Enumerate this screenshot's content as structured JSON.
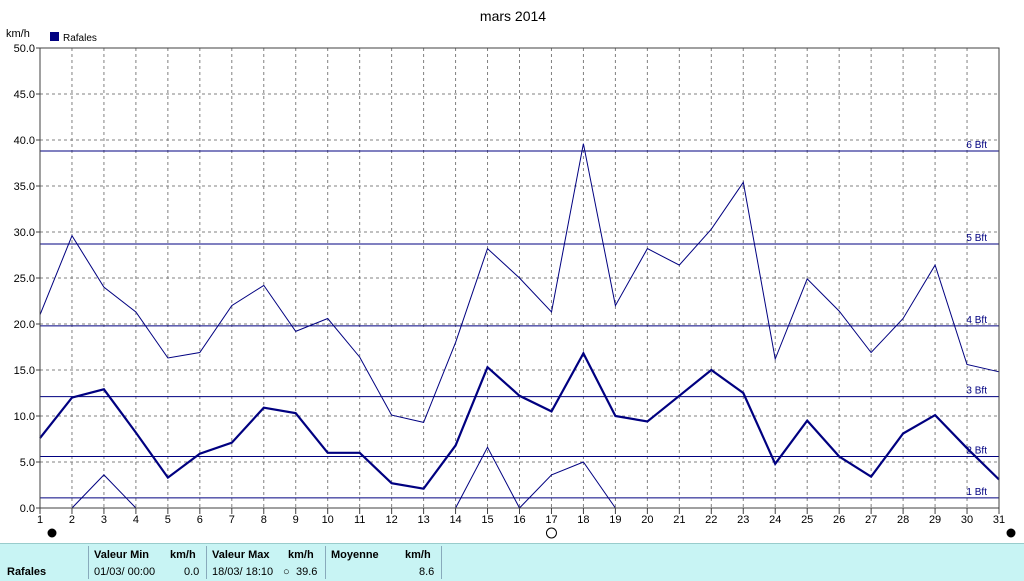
{
  "chart_data": {
    "type": "line",
    "title": "mars 2014",
    "ylabel": "km/h",
    "ylim": [
      0,
      50
    ],
    "yticks": [
      "0.0",
      "5.0",
      "10.0",
      "15.0",
      "20.0",
      "25.0",
      "30.0",
      "35.0",
      "40.0",
      "45.0",
      "50.0"
    ],
    "x": [
      1,
      2,
      3,
      4,
      5,
      6,
      7,
      8,
      9,
      10,
      11,
      12,
      13,
      14,
      15,
      16,
      17,
      18,
      19,
      20,
      21,
      22,
      23,
      24,
      25,
      26,
      27,
      28,
      29,
      30,
      31
    ],
    "legend": [
      {
        "label": "Rafales",
        "color": "#000080"
      }
    ],
    "legend_position": "top-left",
    "grid": true,
    "series": [
      {
        "name": "Rafales",
        "role": "max",
        "values": [
          21.0,
          29.6,
          24.0,
          21.3,
          16.3,
          16.9,
          22.0,
          24.2,
          19.2,
          20.6,
          16.4,
          10.1,
          9.3,
          18.0,
          28.2,
          25.0,
          21.3,
          39.6,
          22.0,
          28.2,
          26.4,
          30.3,
          35.4,
          16.2,
          24.9,
          21.4,
          16.9,
          20.6,
          26.4,
          15.6,
          14.8
        ]
      },
      {
        "name": "Rafales",
        "role": "mean",
        "values": [
          7.6,
          12.0,
          12.9,
          8.2,
          3.3,
          5.9,
          7.1,
          10.9,
          10.3,
          6.0,
          6.0,
          2.7,
          2.1,
          6.8,
          15.3,
          12.2,
          10.5,
          16.8,
          10.0,
          9.4,
          12.2,
          15.0,
          12.5,
          4.8,
          9.5,
          5.6,
          3.4,
          8.1,
          10.1,
          6.5,
          3.1
        ]
      },
      {
        "name": "Rafales",
        "role": "min",
        "values": [
          null,
          0.0,
          3.6,
          0.0,
          null,
          null,
          null,
          null,
          null,
          null,
          null,
          null,
          null,
          0.0,
          6.6,
          0.0,
          3.6,
          5.0,
          0.0,
          null,
          null,
          null,
          null,
          null,
          null,
          null,
          null,
          null,
          null,
          null,
          null
        ]
      }
    ],
    "beaufort_lines": [
      {
        "label": "1 Bft",
        "value": 1.1
      },
      {
        "label": "2 Bft",
        "value": 5.6
      },
      {
        "label": "3 Bft",
        "value": 12.1
      },
      {
        "label": "4 Bft",
        "value": 19.8
      },
      {
        "label": "5 Bft",
        "value": 28.7
      },
      {
        "label": "6 Bft",
        "value": 38.8
      }
    ],
    "moon_phases": [
      {
        "day": 1,
        "phase": "new"
      },
      {
        "day": 17,
        "phase": "full"
      },
      {
        "day": 31,
        "phase": "new"
      }
    ],
    "colors": {
      "line": "#000080",
      "grid": "#808080",
      "axis": "#404040"
    }
  },
  "stats": {
    "row_label": "Rafales",
    "min": {
      "header": "Valeur Min",
      "unit": "km/h",
      "when": "01/03/  00:00",
      "value": "0.0"
    },
    "max": {
      "header": "Valeur Max",
      "unit": "km/h",
      "when": "18/03/  18:10",
      "value": "39.6"
    },
    "mean": {
      "header": "Moyenne",
      "unit": "km/h",
      "value": "8.6"
    }
  }
}
